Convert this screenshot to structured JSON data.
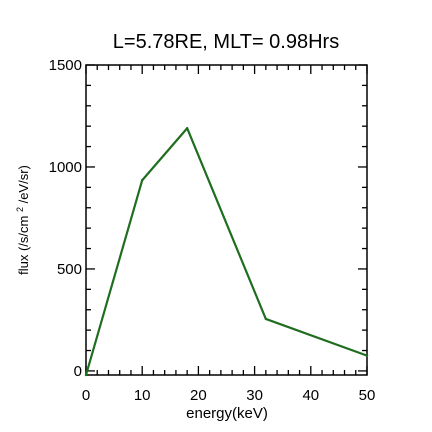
{
  "chart_data": {
    "type": "line",
    "title": "L=5.78RE, MLT= 0.98Hrs",
    "xlabel": "energy(keV)",
    "ylabel": {
      "prefix": "flux (/s/cm",
      "superscript": "2",
      "suffix": "/eV/sr)"
    },
    "xlim": [
      0,
      50
    ],
    "ylim": [
      -20,
      1500
    ],
    "xticks": [
      0,
      10,
      20,
      30,
      40,
      50
    ],
    "yticks": [
      0,
      500,
      1000,
      1500
    ],
    "x": [
      0,
      10,
      18,
      32,
      50
    ],
    "series": [
      {
        "values": [
          -20,
          935,
          1190,
          255,
          75
        ],
        "color": "#1f6e1f"
      }
    ],
    "grid": false
  }
}
